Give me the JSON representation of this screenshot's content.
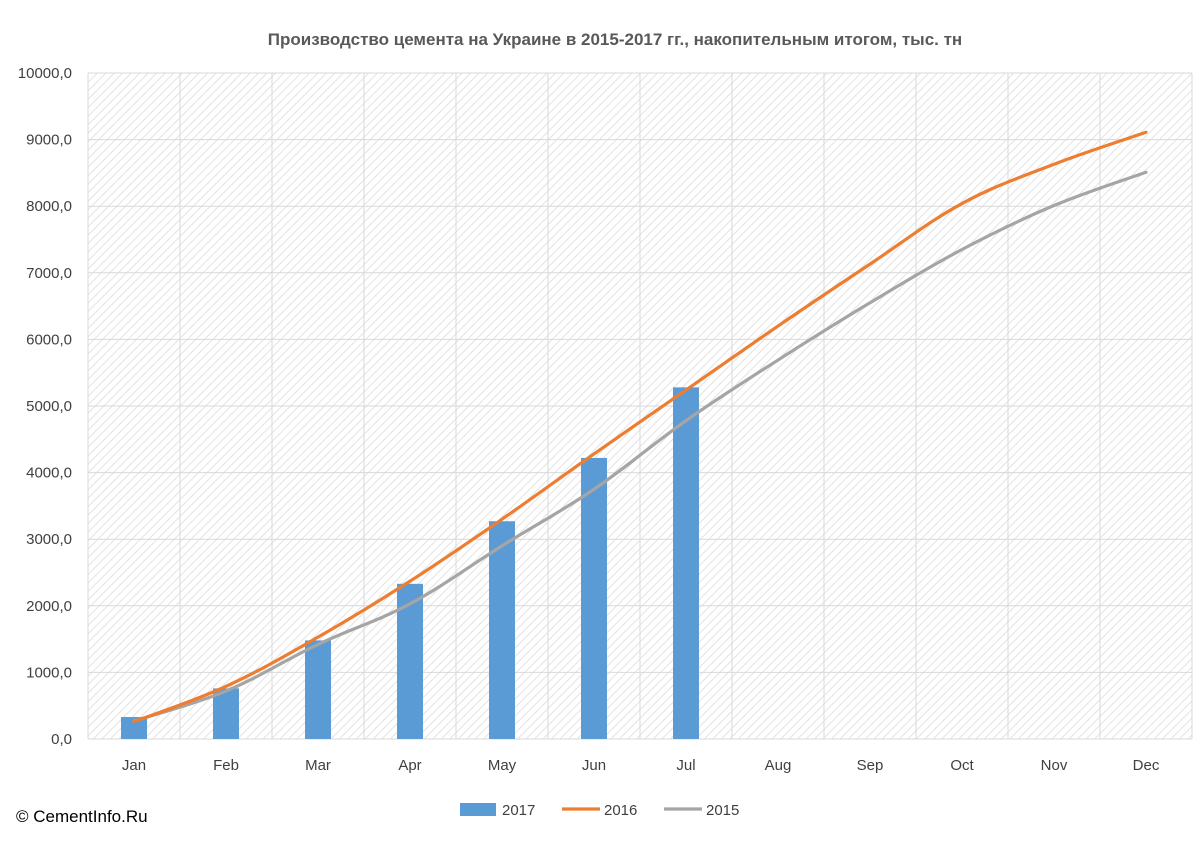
{
  "copyright": "© CementInfo.Ru",
  "colors": {
    "bar_2017": "#5b9bd5",
    "line_2016": "#ed7d31",
    "line_2015": "#a5a5a5",
    "grid": "#d9d9d9",
    "hatch": "#e3e3e3",
    "text": "#404040"
  },
  "chart_data": {
    "type": "bar+line",
    "title": "Производство цемента на Украине в 2015-2017 гг., накопительным итогом,  тыс. тн",
    "categories": [
      "Jan",
      "Feb",
      "Mar",
      "Apr",
      "May",
      "Jun",
      "Jul",
      "Aug",
      "Sep",
      "Oct",
      "Nov",
      "Dec"
    ],
    "ylim": [
      0,
      10000
    ],
    "yticks": [
      "0,0",
      "1000,0",
      "2000,0",
      "3000,0",
      "4000,0",
      "5000,0",
      "6000,0",
      "7000,0",
      "8000,0",
      "9000,0",
      "10000,0"
    ],
    "grid": true,
    "legend_position": "bottom",
    "series": [
      {
        "name": "2017",
        "kind": "bar",
        "values": [
          330,
          760,
          1480,
          2330,
          3270,
          4220,
          5280,
          null,
          null,
          null,
          null,
          null
        ]
      },
      {
        "name": "2016",
        "kind": "line",
        "values": [
          260,
          790,
          1530,
          2370,
          3300,
          4280,
          5240,
          6200,
          7130,
          8040,
          8630,
          9110
        ]
      },
      {
        "name": "2015",
        "kind": "line",
        "values": [
          270,
          720,
          1420,
          2030,
          2900,
          3750,
          4780,
          5690,
          6550,
          7350,
          8010,
          8510
        ]
      }
    ]
  }
}
